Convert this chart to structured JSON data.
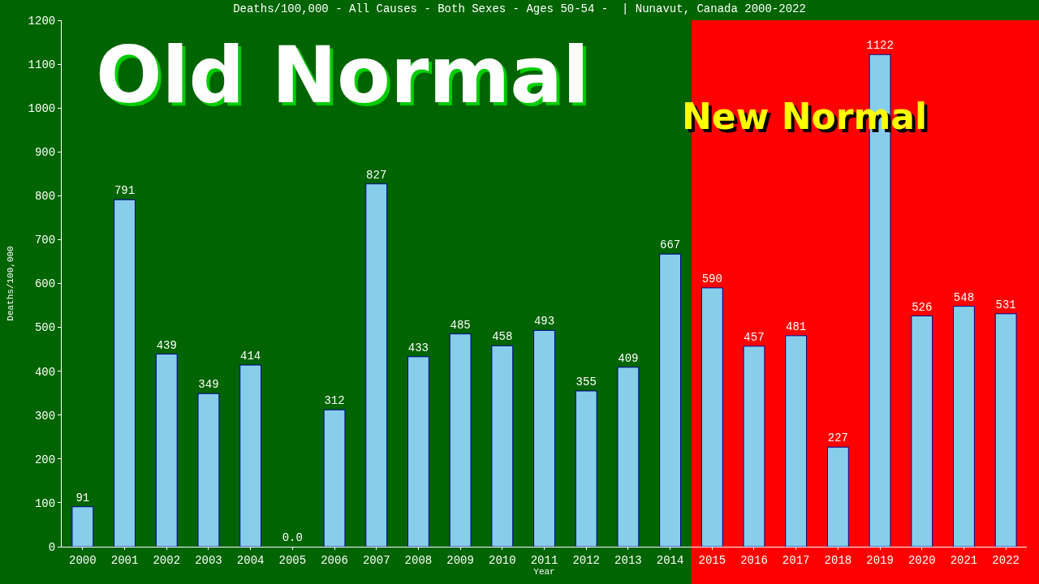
{
  "chart_data": {
    "type": "bar",
    "title": "Deaths/100,000 - All Causes - Both Sexes - Ages 50-54 -  | Nunavut, Canada 2000-2022",
    "xlabel": "Year",
    "ylabel": "Deaths/100,000",
    "categories": [
      "2000",
      "2001",
      "2002",
      "2003",
      "2004",
      "2005",
      "2006",
      "2007",
      "2008",
      "2009",
      "2010",
      "2011",
      "2012",
      "2013",
      "2014",
      "2015",
      "2016",
      "2017",
      "2018",
      "2019",
      "2020",
      "2021",
      "2022"
    ],
    "values": [
      91,
      791,
      439,
      349,
      414,
      0,
      312,
      827,
      433,
      485,
      458,
      493,
      355,
      409,
      667,
      590,
      457,
      481,
      227,
      1122,
      526,
      548,
      531
    ],
    "value_labels": [
      "91",
      "791",
      "439",
      "349",
      "414",
      "0.0",
      "312",
      "827",
      "433",
      "485",
      "458",
      "493",
      "355",
      "409",
      "667",
      "590",
      "457",
      "481",
      "227",
      "1122",
      "526",
      "548",
      "531"
    ],
    "color": "#87ceeb",
    "ylim": [
      0,
      1200
    ],
    "yticks": [
      0,
      100,
      200,
      300,
      400,
      500,
      600,
      700,
      800,
      900,
      1000,
      1100,
      1200
    ],
    "grid": false,
    "legend": false,
    "bands": [
      {
        "axis": "x",
        "from": "2000",
        "to": "2014",
        "label": "Old Normal",
        "color": "#006400"
      },
      {
        "axis": "x",
        "from": "2015",
        "to": "2022",
        "label": "New Normal",
        "color": "#ff0000"
      }
    ]
  }
}
